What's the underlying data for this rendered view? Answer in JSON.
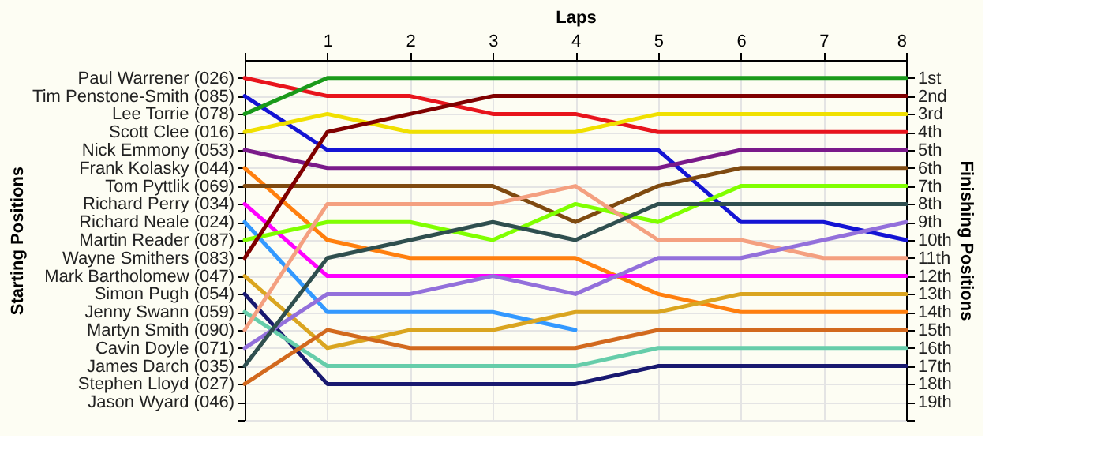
{
  "chart_data": {
    "type": "line",
    "xlabel": "Laps",
    "y2label": "Finishing Positions",
    "grid": true,
    "x": [
      0,
      1,
      2,
      3,
      4,
      5,
      6,
      7,
      8
    ],
    "xlim": [
      0,
      8
    ],
    "xticks": [
      {
        "value": 0,
        "label": null
      },
      1,
      2,
      3,
      4,
      5,
      6,
      7,
      8
    ],
    "annotations": [
      "Paul Warrener (026)",
      "Tim Penstone-Smith (085)",
      "Lee Torrie (078)",
      "Scott Clee (016)",
      "Nick Emmony (053)",
      "Frank Kolasky (044)",
      "Tom Pyttlik (069)",
      "Richard Perry (034)",
      "Richard Neale (024)",
      "Martin Reader (087)",
      "Wayne Smithers (083)",
      "Mark Bartholomew (047)",
      "Simon Pugh (054)",
      "Jenny Swann (059)",
      "Martyn Smith (090)",
      "Cavin Doyle (071)",
      "James Darch (035)",
      "Stephen Lloyd (027)",
      "Jason Wyard (046)",
      "Starting Positions"
    ],
    "y2lim": [
      20,
      0
    ],
    "y2ticks": [
      {
        "value": 1,
        "label": "1st"
      },
      {
        "value": 2,
        "label": "2nd"
      },
      {
        "value": 3,
        "label": "3rd"
      },
      {
        "value": 4,
        "label": "4th"
      },
      {
        "value": 5,
        "label": "5th"
      },
      {
        "value": 6,
        "label": "6th"
      },
      {
        "value": 7,
        "label": "7th"
      },
      {
        "value": 8,
        "label": "8th"
      },
      {
        "value": 9,
        "label": "9th"
      },
      {
        "value": 10,
        "label": "10th"
      },
      {
        "value": 11,
        "label": "11th"
      },
      {
        "value": 12,
        "label": "12th"
      },
      {
        "value": 13,
        "label": "13th"
      },
      {
        "value": 14,
        "label": "14th"
      },
      {
        "value": 15,
        "label": "15th"
      },
      {
        "value": 16,
        "label": "16th"
      },
      {
        "value": 17,
        "label": "17th"
      },
      {
        "value": 18,
        "label": "18th"
      },
      {
        "value": 19,
        "label": "19th"
      },
      {
        "value": 20,
        "label": null
      }
    ],
    "series": [
      {
        "axis": "y2",
        "color": "#e8141c",
        "values": [
          1,
          2,
          2,
          3,
          3,
          4,
          4,
          4,
          4
        ]
      },
      {
        "axis": "y2",
        "color": "#1414d4",
        "values": [
          2,
          5,
          5,
          5,
          5,
          5,
          9,
          9,
          10
        ]
      },
      {
        "axis": "y2",
        "color": "#1a9a1a",
        "values": [
          3,
          1,
          1,
          1,
          1,
          1,
          1,
          1,
          1
        ]
      },
      {
        "axis": "y2",
        "color": "#f0e000",
        "values": [
          4,
          3,
          4,
          4,
          4,
          3,
          3,
          3,
          3
        ]
      },
      {
        "axis": "y2",
        "color": "#7a1a8a",
        "values": [
          5,
          6,
          6,
          6,
          6,
          6,
          5,
          5,
          5
        ]
      },
      {
        "axis": "y2",
        "color": "#ff7f0e",
        "values": [
          6,
          10,
          11,
          11,
          11,
          13,
          14,
          14,
          14
        ]
      },
      {
        "axis": "y2",
        "color": "#7f4a10",
        "values": [
          7,
          7,
          7,
          7,
          9,
          7,
          6,
          6,
          6
        ]
      },
      {
        "axis": "y2",
        "color": "#ff00ff",
        "values": [
          8,
          12,
          12,
          12,
          12,
          12,
          12,
          12,
          12
        ]
      },
      {
        "axis": "y2",
        "color": "#3399ff",
        "values": [
          9,
          14,
          14,
          14,
          15,
          null,
          null,
          null,
          null
        ]
      },
      {
        "axis": "y2",
        "color": "#80ff00",
        "values": [
          10,
          9,
          9,
          10,
          8,
          9,
          7,
          7,
          7
        ]
      },
      {
        "axis": "y2",
        "color": "#800000",
        "values": [
          11,
          4,
          3,
          2,
          2,
          2,
          2,
          2,
          2
        ]
      },
      {
        "axis": "y2",
        "color": "#daa520",
        "values": [
          12,
          16,
          15,
          15,
          14,
          14,
          13,
          13,
          13
        ]
      },
      {
        "axis": "y2",
        "color": "#191970",
        "values": [
          13,
          18,
          18,
          18,
          18,
          17,
          17,
          17,
          17
        ]
      },
      {
        "axis": "y2",
        "color": "#66cdaa",
        "values": [
          14,
          17,
          17,
          17,
          17,
          16,
          16,
          16,
          16
        ]
      },
      {
        "axis": "y2",
        "color": "#f4a080",
        "values": [
          15,
          8,
          8,
          8,
          7,
          10,
          10,
          11,
          11
        ]
      },
      {
        "axis": "y2",
        "color": "#9370db",
        "values": [
          16,
          13,
          13,
          12,
          13,
          11,
          11,
          10,
          9
        ]
      },
      {
        "axis": "y2",
        "color": "#2f4f4f",
        "values": [
          17,
          11,
          10,
          9,
          10,
          8,
          8,
          8,
          8
        ]
      },
      {
        "axis": "y2",
        "color": "#d2691e",
        "values": [
          18,
          15,
          16,
          16,
          16,
          15,
          15,
          15,
          15
        ]
      }
    ]
  }
}
